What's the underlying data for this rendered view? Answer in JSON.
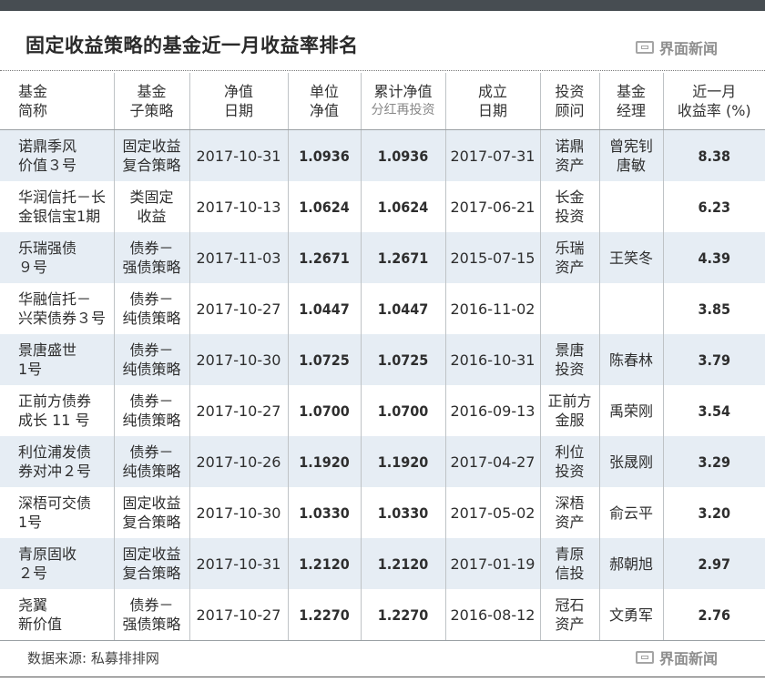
{
  "title": "固定收益策略的基金近一月收益率排名",
  "brand": "界面新闻",
  "source": "数据来源: 私募排排网",
  "headers": [
    {
      "l1": "基金",
      "l2": "简称"
    },
    {
      "l1": "基金",
      "l2": "子策略"
    },
    {
      "l1": "净值",
      "l2": "日期"
    },
    {
      "l1": "单位",
      "l2": "净值"
    },
    {
      "l1": "累计净值",
      "l2": "分红再投资"
    },
    {
      "l1": "成立",
      "l2": "日期"
    },
    {
      "l1": "投资",
      "l2": "顾问"
    },
    {
      "l1": "基金",
      "l2": "经理"
    },
    {
      "l1": "近一月",
      "l2": "收益率 (%)"
    }
  ],
  "rows": [
    {
      "name": [
        "诺鼎季风",
        "价值３号"
      ],
      "strategy": [
        "固定收益",
        "复合策略"
      ],
      "nav_date": "2017-10-31",
      "unit_nav": "1.0936",
      "cum_nav": "1.0936",
      "inception": "2017-07-31",
      "advisor": [
        "诺鼎",
        "资产"
      ],
      "manager": [
        "曾宪钊",
        "唐敏"
      ],
      "return": "8.38"
    },
    {
      "name": [
        "华润信托－长",
        "金银信宝1期"
      ],
      "strategy": [
        "类固定",
        "收益"
      ],
      "nav_date": "2017-10-13",
      "unit_nav": "1.0624",
      "cum_nav": "1.0624",
      "inception": "2017-06-21",
      "advisor": [
        "长金",
        "投资"
      ],
      "manager": [
        "",
        ""
      ],
      "return": "6.23"
    },
    {
      "name": [
        "乐瑞强债",
        "９号"
      ],
      "strategy": [
        "债券－",
        "强债策略"
      ],
      "nav_date": "2017-11-03",
      "unit_nav": "1.2671",
      "cum_nav": "1.2671",
      "inception": "2015-07-15",
      "advisor": [
        "乐瑞",
        "资产"
      ],
      "manager": [
        "王笑冬",
        ""
      ],
      "return": "4.39"
    },
    {
      "name": [
        "华融信托－",
        "兴荣债券３号"
      ],
      "strategy": [
        "债券－",
        "纯债策略"
      ],
      "nav_date": "2017-10-27",
      "unit_nav": "1.0447",
      "cum_nav": "1.0447",
      "inception": "2016-11-02",
      "advisor": [
        "",
        ""
      ],
      "manager": [
        "",
        ""
      ],
      "return": "3.85"
    },
    {
      "name": [
        "景唐盛世",
        "1号"
      ],
      "strategy": [
        "债券－",
        "纯债策略"
      ],
      "nav_date": "2017-10-30",
      "unit_nav": "1.0725",
      "cum_nav": "1.0725",
      "inception": "2016-10-31",
      "advisor": [
        "景唐",
        "投资"
      ],
      "manager": [
        "陈春林",
        ""
      ],
      "return": "3.79"
    },
    {
      "name": [
        "正前方债券",
        "成长 11 号"
      ],
      "strategy": [
        "债券－",
        "纯债策略"
      ],
      "nav_date": "2017-10-27",
      "unit_nav": "1.0700",
      "cum_nav": "1.0700",
      "inception": "2016-09-13",
      "advisor": [
        "正前方",
        "金服"
      ],
      "manager": [
        "禹荣刚",
        ""
      ],
      "return": "3.54"
    },
    {
      "name": [
        "利位浦发债",
        "券对冲２号"
      ],
      "strategy": [
        "债券－",
        "纯债策略"
      ],
      "nav_date": "2017-10-26",
      "unit_nav": "1.1920",
      "cum_nav": "1.1920",
      "inception": "2017-04-27",
      "advisor": [
        "利位",
        "投资"
      ],
      "manager": [
        "张晟刚",
        ""
      ],
      "return": "3.29"
    },
    {
      "name": [
        "深梧可交债",
        "1号"
      ],
      "strategy": [
        "固定收益",
        "复合策略"
      ],
      "nav_date": "2017-10-30",
      "unit_nav": "1.0330",
      "cum_nav": "1.0330",
      "inception": "2017-05-02",
      "advisor": [
        "深梧",
        "资产"
      ],
      "manager": [
        "俞云平",
        ""
      ],
      "return": "3.20"
    },
    {
      "name": [
        "青原固收",
        "２号"
      ],
      "strategy": [
        "固定收益",
        "复合策略"
      ],
      "nav_date": "2017-10-31",
      "unit_nav": "1.2120",
      "cum_nav": "1.2120",
      "inception": "2017-01-19",
      "advisor": [
        "青原",
        "信投"
      ],
      "manager": [
        "郝朝旭",
        ""
      ],
      "return": "2.97"
    },
    {
      "name": [
        "尧翼",
        "新价值"
      ],
      "strategy": [
        "债券－",
        "强债策略"
      ],
      "nav_date": "2017-10-27",
      "unit_nav": "1.2270",
      "cum_nav": "1.2270",
      "inception": "2016-08-12",
      "advisor": [
        "冠石",
        "资产"
      ],
      "manager": [
        "文勇军",
        ""
      ],
      "return": "2.76"
    }
  ]
}
